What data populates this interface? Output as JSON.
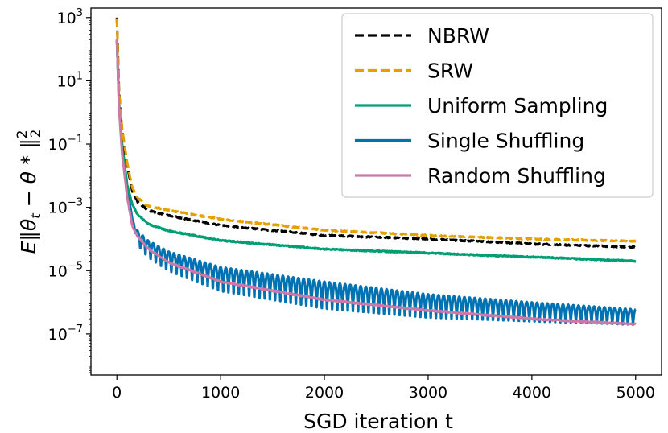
{
  "chart_data": {
    "type": "line",
    "title": "",
    "xlabel": "SGD iteration t",
    "ylabel": "E‖θt − θ*‖²₂",
    "ylabel_parts": {
      "main": "E‖θ",
      "sub_t": "t",
      "mid": " − θ * ‖",
      "sup": "2",
      "sub": "2"
    },
    "xlim": [
      -250,
      5250
    ],
    "ylim_log10": [
      -8.3,
      3.3
    ],
    "y_scale": "log",
    "x_ticks": [
      0,
      1000,
      2000,
      3000,
      4000,
      5000
    ],
    "x_tick_labels": [
      "0",
      "1000",
      "2000",
      "3000",
      "4000",
      "5000"
    ],
    "y_ticks": [
      {
        "exp": 3,
        "base": "10",
        "sup": "3"
      },
      {
        "exp": 1,
        "base": "10",
        "sup": "1"
      },
      {
        "exp": -1,
        "base": "10",
        "sup": "−1"
      },
      {
        "exp": -3,
        "base": "10",
        "sup": "−3"
      },
      {
        "exp": -5,
        "base": "10",
        "sup": "−5"
      },
      {
        "exp": -7,
        "base": "10",
        "sup": "−7"
      }
    ],
    "legend_position": "top-right",
    "series": [
      {
        "name": "NBRW",
        "color": "#000000",
        "style": "dashed",
        "x": [
          0,
          20,
          50,
          100,
          150,
          200,
          300,
          500,
          1000,
          2000,
          3000,
          4000,
          5000
        ],
        "y": [
          1000,
          5,
          0.3,
          0.02,
          0.003,
          0.0015,
          0.0008,
          0.00055,
          0.00027,
          0.00013,
          0.0001,
          7e-05,
          5.5e-05
        ]
      },
      {
        "name": "SRW",
        "color": "#E69F00",
        "style": "dashed",
        "x": [
          0,
          20,
          50,
          100,
          150,
          200,
          300,
          500,
          1000,
          2000,
          3000,
          4000,
          5000
        ],
        "y": [
          950,
          5,
          0.3,
          0.025,
          0.004,
          0.002,
          0.0011,
          0.0008,
          0.00042,
          0.00019,
          0.00013,
          0.0001,
          8.5e-05
        ]
      },
      {
        "name": "Uniform Sampling",
        "color": "#009E73",
        "style": "solid",
        "x": [
          0,
          20,
          50,
          100,
          150,
          200,
          300,
          500,
          1000,
          2000,
          3000,
          4000,
          5000
        ],
        "y": [
          200,
          2,
          0.1,
          0.005,
          0.0012,
          0.0006,
          0.0003,
          0.00018,
          9e-05,
          4.8e-05,
          3.6e-05,
          2.7e-05,
          2e-05
        ]
      },
      {
        "name": "Single Shuffling",
        "color": "#0072B2",
        "style": "solid",
        "oscillation_period": 50,
        "x": [
          0,
          20,
          50,
          100,
          150,
          200,
          300,
          500,
          1000,
          2000,
          3000,
          4000,
          5000
        ],
        "y_upper": [
          200,
          2,
          0.1,
          0.004,
          0.0004,
          0.00018,
          9e-05,
          4e-05,
          1.3e-05,
          4.5e-06,
          1.8e-06,
          1e-06,
          6e-07
        ],
        "y_lower": [
          200,
          2,
          0.1,
          0.004,
          0.0004,
          5e-05,
          2e-05,
          7e-06,
          1.5e-06,
          4e-07,
          2.2e-07,
          1.8e-07,
          1.5e-07
        ]
      },
      {
        "name": "Random Shuffling",
        "color": "#CC79A7",
        "style": "solid",
        "x": [
          0,
          20,
          50,
          100,
          150,
          200,
          300,
          500,
          1000,
          2000,
          3000,
          4000,
          5000
        ],
        "y": [
          200,
          1.5,
          0.05,
          0.002,
          0.00025,
          0.00012,
          5e-05,
          1.8e-05,
          4.5e-06,
          1.2e-06,
          5.5e-07,
          3e-07,
          2e-07
        ]
      }
    ]
  }
}
